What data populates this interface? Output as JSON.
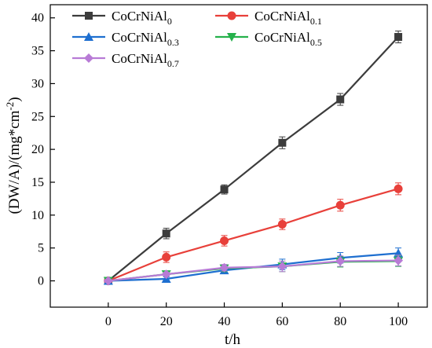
{
  "chart_data": {
    "type": "line",
    "xlabel": "t/h",
    "ylabel": "(DW/A)/(mg*cm",
    "ylabel_sup": "-2",
    "ylabel_close": ")",
    "xlim": [
      -20,
      110
    ],
    "ylim": [
      -4,
      42
    ],
    "xticks": [
      0,
      20,
      40,
      60,
      80,
      100
    ],
    "yticks": [
      0,
      5,
      10,
      15,
      20,
      25,
      30,
      35,
      40
    ],
    "x": [
      0,
      20,
      40,
      60,
      80,
      100
    ],
    "legend_position": "top-left",
    "series": [
      {
        "name_base": "CoCrNiAl",
        "name_sub": "0",
        "color": "#3c3c3c",
        "marker": "square",
        "values": [
          0,
          7.2,
          13.9,
          21.0,
          27.6,
          37.1
        ],
        "errors": [
          0.3,
          0.8,
          0.7,
          0.9,
          0.9,
          0.9
        ]
      },
      {
        "name_base": "CoCrNiAl",
        "name_sub": "0.1",
        "color": "#e8403a",
        "marker": "circle",
        "values": [
          0,
          3.6,
          6.1,
          8.6,
          11.5,
          14.0
        ],
        "errors": [
          0.3,
          0.8,
          0.8,
          0.8,
          0.9,
          0.9
        ]
      },
      {
        "name_base": "CoCrNiAl",
        "name_sub": "0.3",
        "color": "#1e6fd0",
        "marker": "triangle-up",
        "values": [
          0,
          0.3,
          1.6,
          2.5,
          3.5,
          4.2
        ],
        "errors": [
          0.2,
          0.3,
          0.5,
          0.8,
          0.8,
          0.8
        ]
      },
      {
        "name_base": "CoCrNiAl",
        "name_sub": "0.5",
        "color": "#25b14b",
        "marker": "triangle-down",
        "values": [
          0,
          1.0,
          1.9,
          2.2,
          2.9,
          3.0
        ],
        "errors": [
          0.2,
          0.3,
          0.5,
          0.8,
          0.8,
          0.8
        ]
      },
      {
        "name_base": "CoCrNiAl",
        "name_sub": "0.7",
        "color": "#b87bd6",
        "marker": "diamond",
        "values": [
          0,
          1.0,
          2.0,
          2.2,
          3.0,
          3.1
        ],
        "errors": [
          0.2,
          0.3,
          0.5,
          0.8,
          0.8,
          0.8
        ]
      }
    ]
  }
}
